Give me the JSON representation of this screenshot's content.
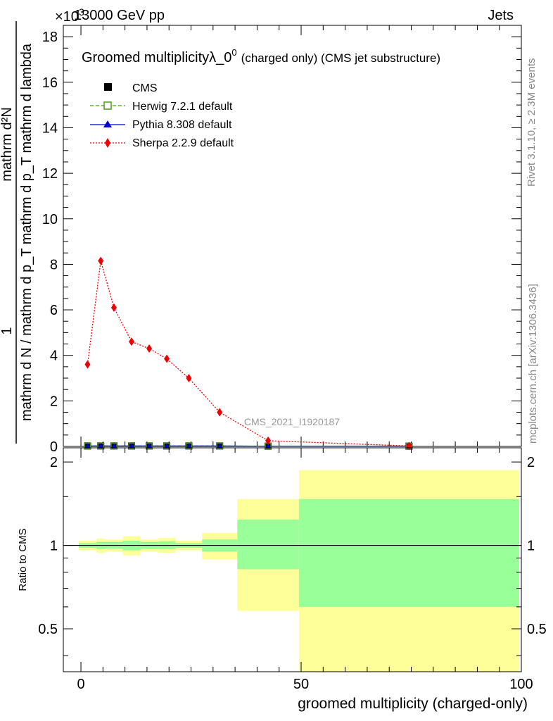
{
  "header": {
    "left": "13000 GeV pp",
    "right": "Jets",
    "exponent": "×10",
    "exponent_power": "3"
  },
  "side_text": {
    "rivet": "Rivet 3.1.10, ≥ 2.3M events",
    "mcplots": "mcplots.cern.ch [arXiv:1306.3436]"
  },
  "chart_data": [
    {
      "type": "line",
      "title_main": "Groomed multiplicityλ_0",
      "title_sup": "0",
      "title_tail": "(charged only) (CMS jet substructure)",
      "ylabel_numerator": "1",
      "ylabel_numerator2": "mathrm d²N",
      "ylabel_denominator": "mathrm d N / mathrm d p_T mathrm d p_T mathrm d lambda",
      "xlim": [
        -4,
        100
      ],
      "ylim": [
        0,
        18.5
      ],
      "y_scale_note": "×10^3",
      "yticks": [
        "0",
        "2",
        "4",
        "6",
        "8",
        "10",
        "12",
        "14",
        "16",
        "18"
      ],
      "watermark": "CMS_2021_I1920187",
      "legend": {
        "cms": "CMS",
        "herwig": "Herwig 7.2.1 default",
        "pythia": "Pythia 8.308 default",
        "sherpa": "Sherpa 2.2.9 default"
      },
      "colors": {
        "cms": "#000000",
        "herwig": "#4a9a1a",
        "pythia": "#0000cc",
        "sherpa": "#ee0000"
      },
      "series": [
        {
          "name": "CMS",
          "x": [
            1.5,
            4.5,
            7.5,
            11.5,
            15.5,
            19.5,
            24.5,
            31.5,
            42.5,
            74.5
          ],
          "y": [
            0.02,
            0.02,
            0.02,
            0.02,
            0.02,
            0.02,
            0.02,
            0.02,
            0.01,
            0.01
          ]
        },
        {
          "name": "Herwig 7.2.1 default",
          "x": [
            1.5,
            4.5,
            7.5,
            11.5,
            15.5,
            19.5,
            24.5,
            31.5,
            42.5,
            74.5
          ],
          "y": [
            0.02,
            0.02,
            0.02,
            0.02,
            0.02,
            0.02,
            0.02,
            0.02,
            0.01,
            0.01
          ]
        },
        {
          "name": "Pythia 8.308 default",
          "x": [
            1.5,
            4.5,
            7.5,
            11.5,
            15.5,
            19.5,
            24.5,
            31.5,
            42.5,
            74.5
          ],
          "y": [
            0.02,
            0.02,
            0.02,
            0.02,
            0.02,
            0.02,
            0.02,
            0.02,
            0.01,
            0.01
          ]
        },
        {
          "name": "Sherpa 2.2.9 default",
          "x": [
            1.5,
            4.5,
            7.5,
            11.5,
            15.5,
            19.5,
            24.5,
            31.5,
            42.5,
            74.5
          ],
          "y": [
            3.6,
            8.15,
            6.1,
            4.6,
            4.3,
            3.85,
            3.0,
            1.5,
            0.25,
            0.02
          ]
        }
      ]
    },
    {
      "type": "area",
      "ylabel": "Ratio to CMS",
      "xlabel": "groomed multiplicity (charged-only)",
      "xlim": [
        -4,
        100
      ],
      "ylim": [
        0.35,
        2.25
      ],
      "xticks": [
        "0",
        "50",
        "100"
      ],
      "yticks": [
        "0.5",
        "1",
        "2"
      ],
      "colors": {
        "inner": "#99ff99",
        "outer": "#ffff99",
        "line": "#000000"
      },
      "bands": [
        {
          "x0": -0.5,
          "x1": 3.5,
          "stat_lo": 0.98,
          "stat_hi": 1.02,
          "tot_lo": 0.96,
          "tot_hi": 1.04
        },
        {
          "x0": 3.5,
          "x1": 5.5,
          "stat_lo": 0.97,
          "stat_hi": 1.03,
          "tot_lo": 0.94,
          "tot_hi": 1.06
        },
        {
          "x0": 5.5,
          "x1": 9.5,
          "stat_lo": 0.975,
          "stat_hi": 1.03,
          "tot_lo": 0.95,
          "tot_hi": 1.05
        },
        {
          "x0": 9.5,
          "x1": 13.5,
          "stat_lo": 0.96,
          "stat_hi": 1.04,
          "tot_lo": 0.92,
          "tot_hi": 1.08
        },
        {
          "x0": 13.5,
          "x1": 17.5,
          "stat_lo": 0.97,
          "stat_hi": 1.03,
          "tot_lo": 0.95,
          "tot_hi": 1.05
        },
        {
          "x0": 17.5,
          "x1": 21.5,
          "stat_lo": 0.97,
          "stat_hi": 1.035,
          "tot_lo": 0.94,
          "tot_hi": 1.065
        },
        {
          "x0": 21.5,
          "x1": 27.5,
          "stat_lo": 0.98,
          "stat_hi": 1.02,
          "tot_lo": 0.96,
          "tot_hi": 1.04
        },
        {
          "x0": 27.5,
          "x1": 35.5,
          "stat_lo": 0.95,
          "stat_hi": 1.05,
          "tot_lo": 0.89,
          "tot_hi": 1.11
        },
        {
          "x0": 35.5,
          "x1": 49.5,
          "stat_lo": 0.82,
          "stat_hi": 1.24,
          "tot_lo": 0.58,
          "tot_hi": 1.47
        },
        {
          "x0": 49.5,
          "x1": 99.5,
          "stat_lo": 0.6,
          "stat_hi": 1.47,
          "tot_lo": 0.35,
          "tot_hi": 1.87
        }
      ]
    }
  ]
}
